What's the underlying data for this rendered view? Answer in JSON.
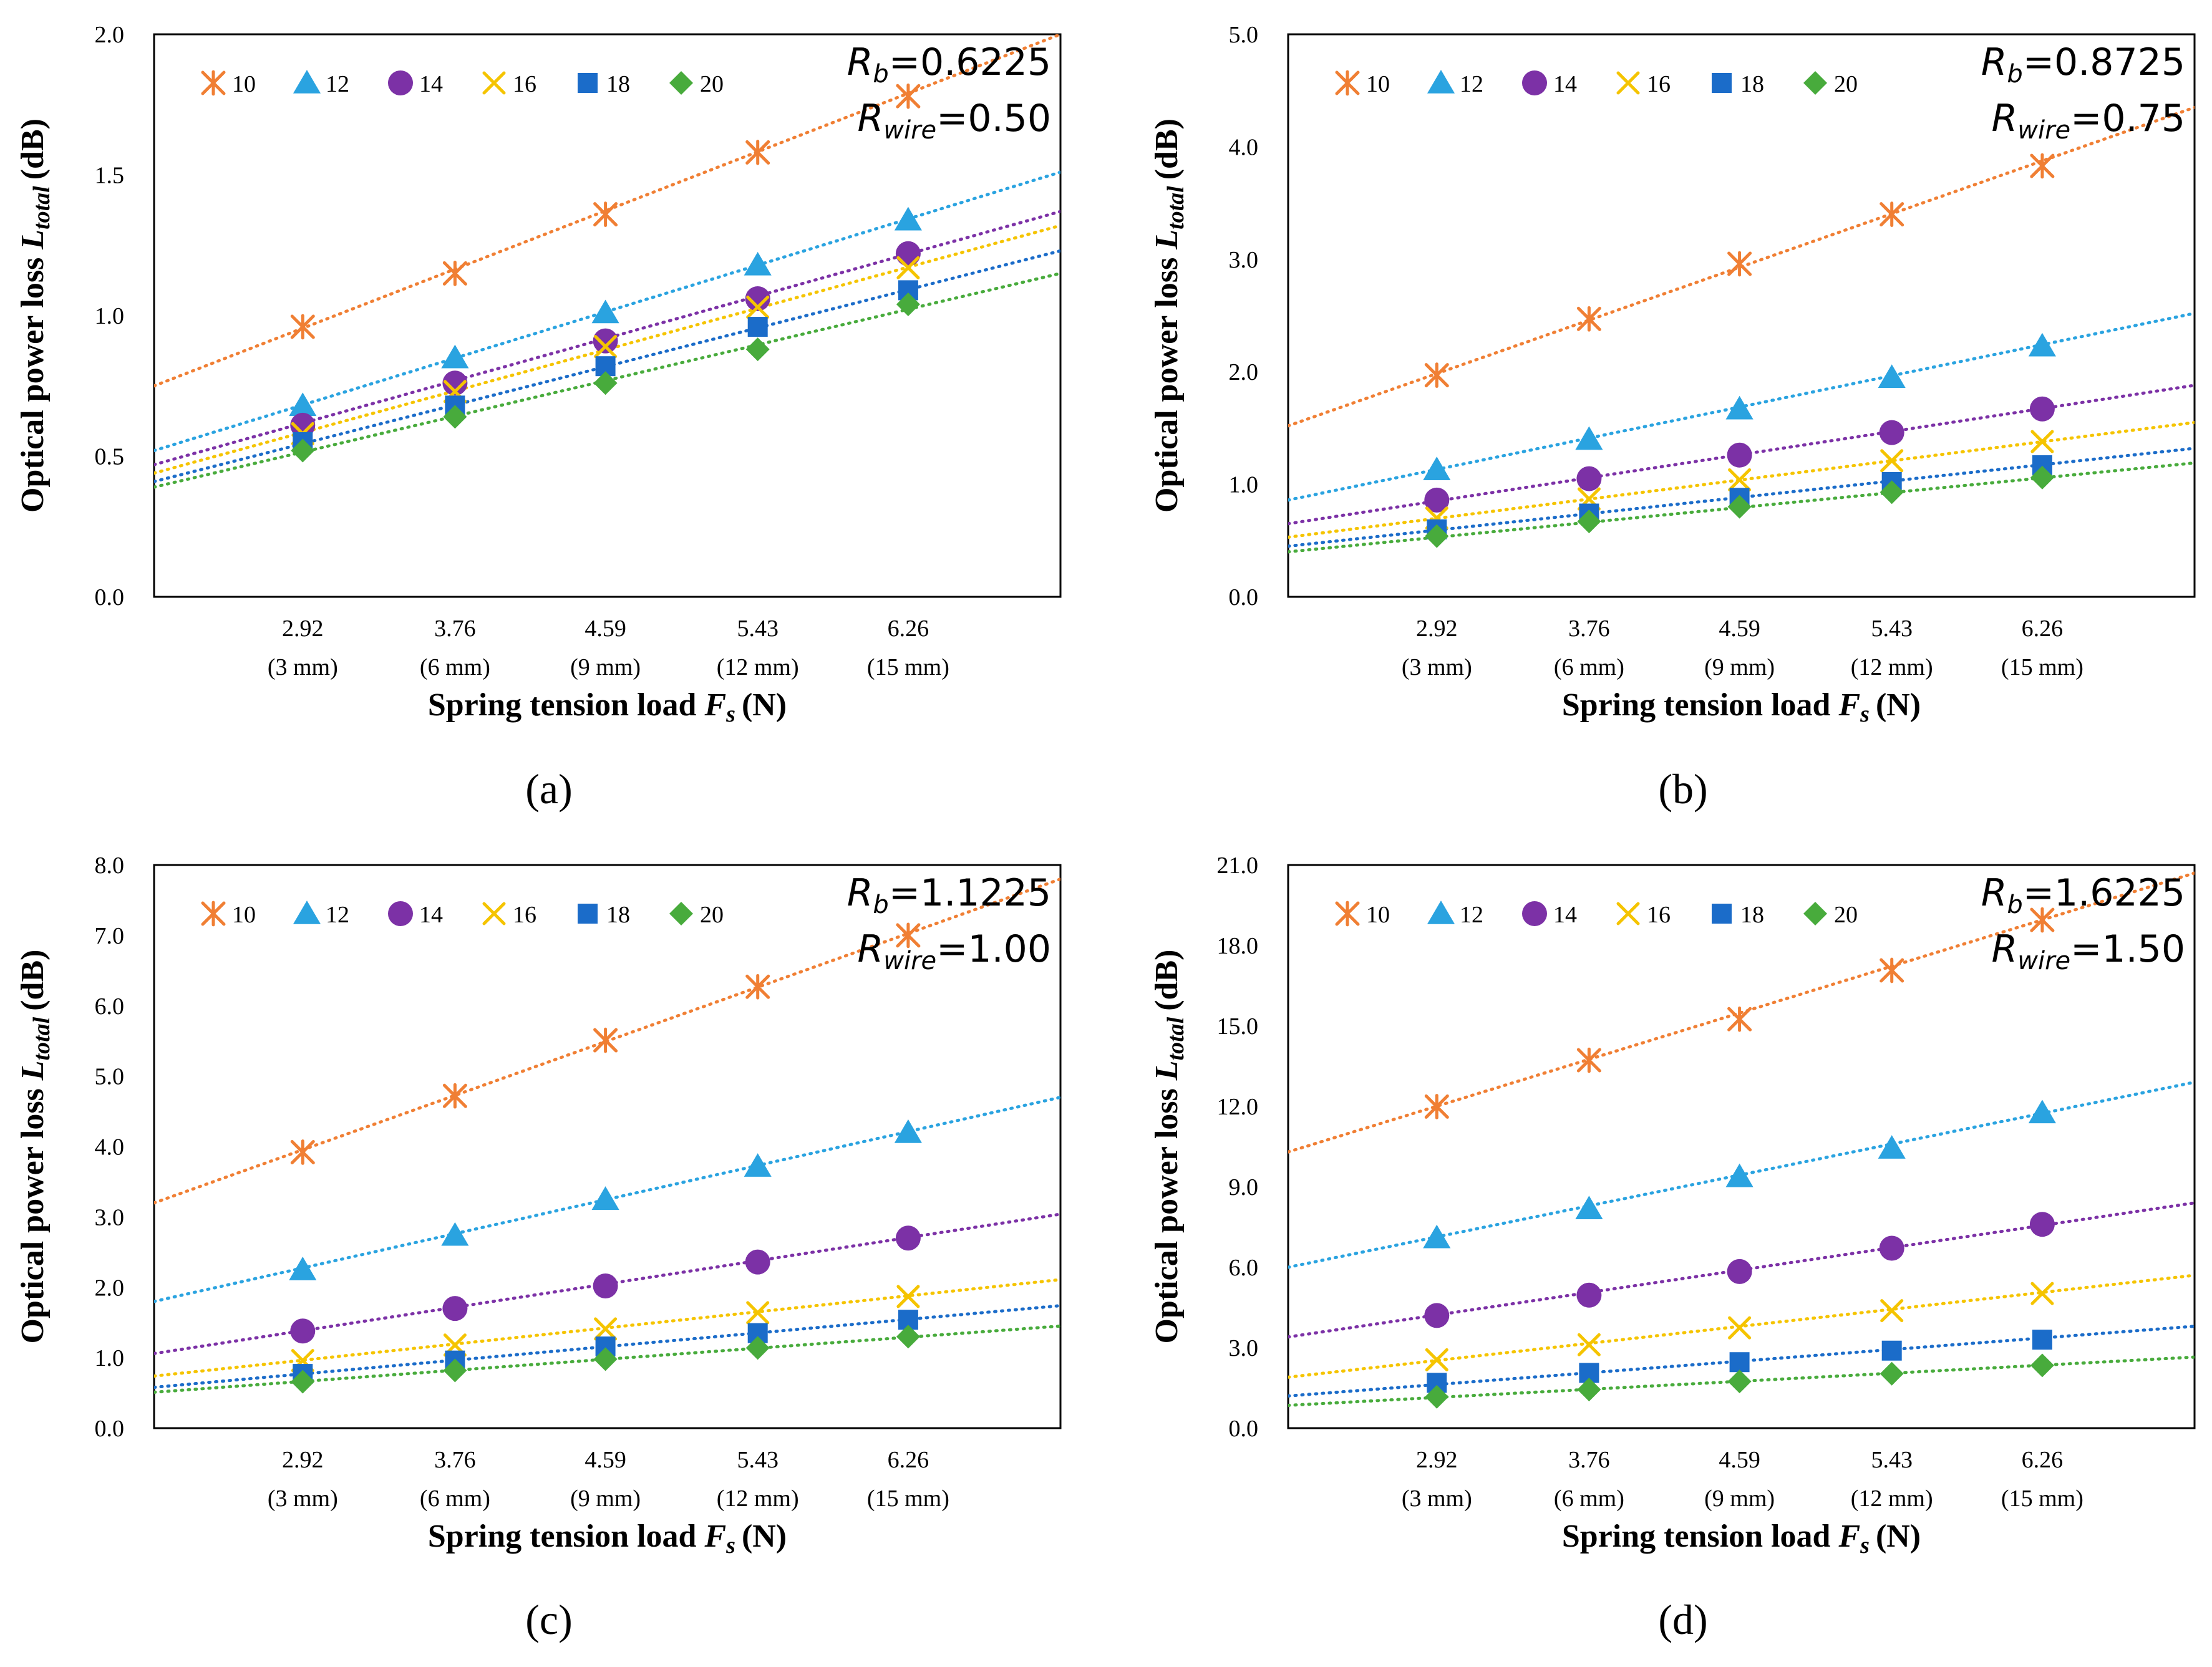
{
  "figure": {
    "series_colors": {
      "10": "#f07f34",
      "12": "#2aa3e0",
      "14": "#7c31a6",
      "16": "#f5c400",
      "18": "#1b6cc9",
      "20": "#48ab3c"
    }
  },
  "chart_data": [
    {
      "type": "scatter",
      "panel_label": "(a)",
      "annotation": {
        "rb_sym": "R",
        "rb_sub": "b",
        "rb_val": "=0.6225",
        "rw_sym": "R",
        "rw_sub": "wire",
        "rw_val": "=0.50"
      },
      "xlabel": "Spring tension load",
      "xlabel_sym": "F",
      "xlabel_sub": "s",
      "xlabel_unit": "(N)",
      "ylabel": "Optical power loss",
      "ylabel_sym": "L",
      "ylabel_sub": "total",
      "ylabel_unit": "(dB)",
      "x_ticks": [
        "2.92",
        "3.76",
        "4.59",
        "5.43",
        "6.26"
      ],
      "x_subticks": [
        "(3 mm)",
        "(6 mm)",
        "(9 mm)",
        "(12 mm)",
        "(15 mm)"
      ],
      "x": [
        2.92,
        3.76,
        4.59,
        5.43,
        6.26
      ],
      "xlim": [
        2.1,
        7.1
      ],
      "ylim": [
        0,
        2.0
      ],
      "y_ticks": [
        "0.0",
        "0.5",
        "1.0",
        "1.5",
        "2.0"
      ],
      "legend": [
        "10",
        "12",
        "14",
        "16",
        "18",
        "20"
      ],
      "series": [
        {
          "name": "10",
          "marker": "asterisk",
          "values": [
            0.96,
            1.15,
            1.36,
            1.58,
            1.78
          ],
          "trend": [
            0.75,
            2.0
          ]
        },
        {
          "name": "12",
          "marker": "triangle",
          "values": [
            0.68,
            0.85,
            1.01,
            1.18,
            1.34
          ],
          "trend": [
            0.52,
            1.51
          ]
        },
        {
          "name": "14",
          "marker": "circle",
          "values": [
            0.61,
            0.76,
            0.91,
            1.06,
            1.22
          ],
          "trend": [
            0.47,
            1.37
          ]
        },
        {
          "name": "16",
          "marker": "x",
          "values": [
            0.58,
            0.73,
            0.89,
            1.03,
            1.17
          ],
          "trend": [
            0.44,
            1.32
          ]
        },
        {
          "name": "18",
          "marker": "square",
          "values": [
            0.55,
            0.68,
            0.82,
            0.96,
            1.09
          ],
          "trend": [
            0.41,
            1.23
          ]
        },
        {
          "name": "20",
          "marker": "diamond",
          "values": [
            0.52,
            0.64,
            0.76,
            0.88,
            1.04
          ],
          "trend": [
            0.39,
            1.15
          ]
        }
      ]
    },
    {
      "type": "scatter",
      "panel_label": "(b)",
      "annotation": {
        "rb_sym": "R",
        "rb_sub": "b",
        "rb_val": "=0.8725",
        "rw_sym": "R",
        "rw_sub": "wire",
        "rw_val": "=0.75"
      },
      "xlabel": "Spring tension load",
      "xlabel_sym": "F",
      "xlabel_sub": "s",
      "xlabel_unit": "(N)",
      "ylabel": "Optical power loss",
      "ylabel_sym": "L",
      "ylabel_sub": "total",
      "ylabel_unit": "(dB)",
      "x_ticks": [
        "2.92",
        "3.76",
        "4.59",
        "5.43",
        "6.26"
      ],
      "x_subticks": [
        "(3 mm)",
        "(6 mm)",
        "(9 mm)",
        "(12 mm)",
        "(15 mm)"
      ],
      "x": [
        2.92,
        3.76,
        4.59,
        5.43,
        6.26
      ],
      "xlim": [
        2.1,
        7.1
      ],
      "ylim": [
        0,
        5.0
      ],
      "y_ticks": [
        "0.0",
        "1.0",
        "2.0",
        "3.0",
        "4.0",
        "5.0"
      ],
      "legend": [
        "10",
        "12",
        "14",
        "16",
        "18",
        "20"
      ],
      "series": [
        {
          "name": "10",
          "marker": "asterisk",
          "values": [
            1.97,
            2.47,
            2.96,
            3.4,
            3.83
          ],
          "trend": [
            1.52,
            4.35
          ]
        },
        {
          "name": "12",
          "marker": "triangle",
          "values": [
            1.13,
            1.4,
            1.67,
            1.95,
            2.23
          ],
          "trend": [
            0.86,
            2.52
          ]
        },
        {
          "name": "14",
          "marker": "circle",
          "values": [
            0.86,
            1.05,
            1.26,
            1.46,
            1.67
          ],
          "trend": [
            0.65,
            1.88
          ]
        },
        {
          "name": "16",
          "marker": "x",
          "values": [
            0.7,
            0.87,
            1.04,
            1.21,
            1.38
          ],
          "trend": [
            0.53,
            1.55
          ]
        },
        {
          "name": "18",
          "marker": "square",
          "values": [
            0.6,
            0.74,
            0.88,
            1.02,
            1.17
          ],
          "trend": [
            0.45,
            1.32
          ]
        },
        {
          "name": "20",
          "marker": "diamond",
          "values": [
            0.54,
            0.67,
            0.8,
            0.93,
            1.06
          ],
          "trend": [
            0.4,
            1.19
          ]
        }
      ]
    },
    {
      "type": "scatter",
      "panel_label": "(c)",
      "annotation": {
        "rb_sym": "R",
        "rb_sub": "b",
        "rb_val": "=1.1225",
        "rw_sym": "R",
        "rw_sub": "wire",
        "rw_val": "=1.00"
      },
      "xlabel": "Spring tension load",
      "xlabel_sym": "F",
      "xlabel_sub": "s",
      "xlabel_unit": "(N)",
      "ylabel": "Optical power loss",
      "ylabel_sym": "L",
      "ylabel_sub": "total",
      "ylabel_unit": "(dB)",
      "x_ticks": [
        "2.92",
        "3.76",
        "4.59",
        "5.43",
        "6.26"
      ],
      "x_subticks": [
        "(3 mm)",
        "(6 mm)",
        "(9 mm)",
        "(12 mm)",
        "(15 mm)"
      ],
      "x": [
        2.92,
        3.76,
        4.59,
        5.43,
        6.26
      ],
      "xlim": [
        2.1,
        7.1
      ],
      "ylim": [
        0,
        8.0
      ],
      "y_ticks": [
        "0.0",
        "1.0",
        "2.0",
        "3.0",
        "4.0",
        "5.0",
        "6.0",
        "7.0",
        "8.0"
      ],
      "legend": [
        "10",
        "12",
        "14",
        "16",
        "18",
        "20"
      ],
      "series": [
        {
          "name": "10",
          "marker": "asterisk",
          "values": [
            3.92,
            4.72,
            5.51,
            6.27,
            7.0
          ],
          "trend": [
            3.2,
            7.8
          ]
        },
        {
          "name": "12",
          "marker": "triangle",
          "values": [
            2.25,
            2.74,
            3.25,
            3.72,
            4.2
          ],
          "trend": [
            1.8,
            4.7
          ]
        },
        {
          "name": "14",
          "marker": "circle",
          "values": [
            1.38,
            1.7,
            2.02,
            2.36,
            2.7
          ],
          "trend": [
            1.06,
            3.04
          ]
        },
        {
          "name": "16",
          "marker": "x",
          "values": [
            0.96,
            1.18,
            1.41,
            1.64,
            1.87
          ],
          "trend": [
            0.74,
            2.11
          ]
        },
        {
          "name": "18",
          "marker": "square",
          "values": [
            0.77,
            0.96,
            1.16,
            1.35,
            1.54
          ],
          "trend": [
            0.58,
            1.74
          ]
        },
        {
          "name": "20",
          "marker": "diamond",
          "values": [
            0.66,
            0.82,
            0.98,
            1.14,
            1.3
          ],
          "trend": [
            0.51,
            1.45
          ]
        }
      ]
    },
    {
      "type": "scatter",
      "panel_label": "(d)",
      "annotation": {
        "rb_sym": "R",
        "rb_sub": "b",
        "rb_val": "=1.6225",
        "rw_sym": "R",
        "rw_sub": "wire",
        "rw_val": "=1.50"
      },
      "xlabel": "Spring tension load",
      "xlabel_sym": "F",
      "xlabel_sub": "s",
      "xlabel_unit": "(N)",
      "ylabel": "Optical power loss",
      "ylabel_sym": "L",
      "ylabel_sub": "total",
      "ylabel_unit": "(dB)",
      "x_ticks": [
        "2.92",
        "3.76",
        "4.59",
        "5.43",
        "6.26"
      ],
      "x_subticks": [
        "(3 mm)",
        "(6 mm)",
        "(9 mm)",
        "(12 mm)",
        "(15 mm)"
      ],
      "x": [
        2.92,
        3.76,
        4.59,
        5.43,
        6.26
      ],
      "xlim": [
        2.1,
        7.1
      ],
      "ylim": [
        0,
        21.0
      ],
      "y_ticks": [
        "0.0",
        "3.0",
        "6.0",
        "9.0",
        "12.0",
        "15.0",
        "18.0",
        "21.0"
      ],
      "legend": [
        "10",
        "12",
        "14",
        "16",
        "18",
        "20"
      ],
      "series": [
        {
          "name": "10",
          "marker": "asterisk",
          "values": [
            11.99,
            13.72,
            15.25,
            17.07,
            18.95
          ],
          "trend": [
            10.3,
            20.7
          ]
        },
        {
          "name": "12",
          "marker": "triangle",
          "values": [
            7.1,
            8.18,
            9.38,
            10.44,
            11.76
          ],
          "trend": [
            6.0,
            12.9
          ]
        },
        {
          "name": "14",
          "marker": "circle",
          "values": [
            4.2,
            4.96,
            5.84,
            6.71,
            7.6
          ],
          "trend": [
            3.4,
            8.4
          ]
        },
        {
          "name": "16",
          "marker": "x",
          "values": [
            2.55,
            3.11,
            3.74,
            4.38,
            5.02
          ],
          "trend": [
            1.9,
            5.7
          ]
        },
        {
          "name": "18",
          "marker": "square",
          "values": [
            1.69,
            2.06,
            2.46,
            2.89,
            3.3
          ],
          "trend": [
            1.2,
            3.8
          ]
        },
        {
          "name": "20",
          "marker": "diamond",
          "values": [
            1.17,
            1.44,
            1.74,
            2.03,
            2.34
          ],
          "trend": [
            0.85,
            2.65
          ]
        }
      ]
    }
  ]
}
